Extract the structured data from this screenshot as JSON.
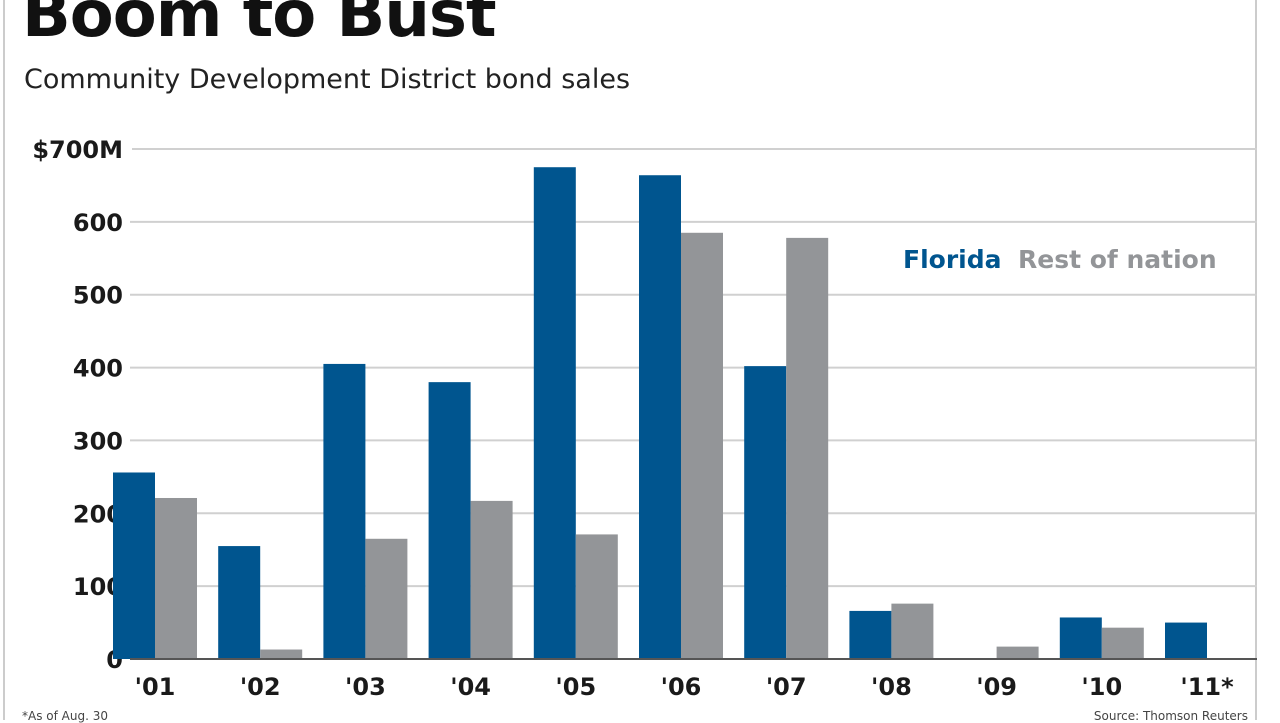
{
  "title": "Boom to Bust",
  "subtitle": "Community Development District bond sales",
  "footnote": "*As of Aug. 30",
  "source": "Source: Thomson Reuters",
  "colors": {
    "florida": "#00558f",
    "rest": "#939598",
    "grid": "#d0d0d0"
  },
  "chart_data": {
    "type": "bar",
    "categories": [
      "'01",
      "'02",
      "'03",
      "'04",
      "'05",
      "'06",
      "'07",
      "'08",
      "'09",
      "'10",
      "'11*"
    ],
    "series": [
      {
        "name": "Florida",
        "values": [
          256,
          155,
          405,
          380,
          675,
          664,
          402,
          66,
          0,
          57,
          50
        ]
      },
      {
        "name": "Rest of nation",
        "values": [
          221,
          13,
          165,
          217,
          171,
          585,
          578,
          76,
          17,
          43,
          0
        ]
      }
    ],
    "yticks": [
      "0",
      "100",
      "200",
      "300",
      "400",
      "500",
      "600",
      "$700M"
    ],
    "ylim": [
      0,
      700
    ],
    "grid": true,
    "legend": "top-right"
  }
}
